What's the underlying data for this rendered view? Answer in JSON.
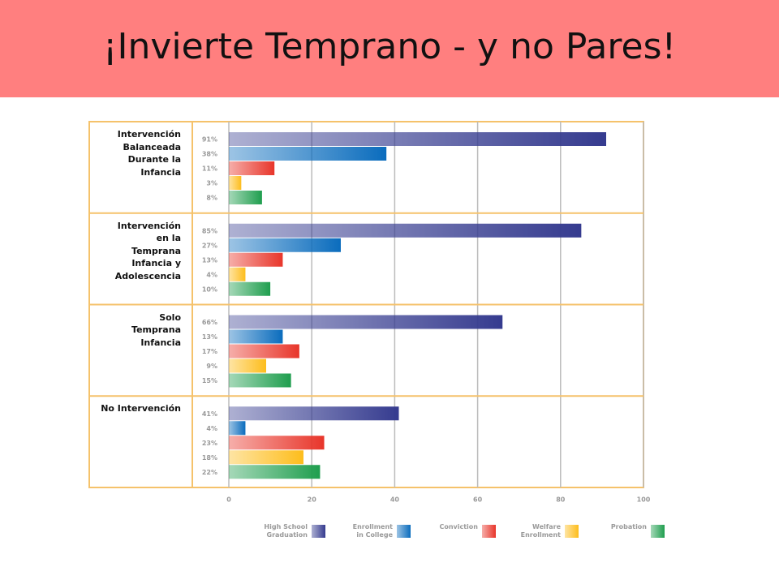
{
  "title": "¡Invierte Temprano - y no Pares!",
  "chart_data": {
    "type": "bar",
    "orientation": "horizontal",
    "categories": [
      "Intervención\nBalanceada\nDurante la\nInfancia",
      "Intervención\nen la\nTemprana\nInfancia y\nAdolescencia",
      "Solo\nTemprana\nInfancia",
      "No Intervención"
    ],
    "series": [
      {
        "name": "High School\nGraduation",
        "color": "#353b8f",
        "values": [
          91,
          85,
          66,
          41
        ],
        "value_labels": [
          "91%",
          "85%",
          "66%",
          "41%"
        ]
      },
      {
        "name": "Enrollment\nin College",
        "color": "#0a6cbd",
        "values": [
          38,
          27,
          13,
          4
        ],
        "value_labels": [
          "38%",
          "27%",
          "13%",
          "4%"
        ]
      },
      {
        "name": "Conviction",
        "color": "#e8352a",
        "values": [
          11,
          13,
          17,
          23
        ],
        "value_labels": [
          "11%",
          "13%",
          "17%",
          "23%"
        ]
      },
      {
        "name": "Welfare\nEnrollment",
        "color": "#fdbd1c",
        "values": [
          3,
          4,
          9,
          18
        ],
        "value_labels": [
          "3%",
          "4%",
          "9%",
          "18%"
        ]
      },
      {
        "name": "Probation",
        "color": "#1f9e4e",
        "values": [
          8,
          10,
          15,
          22
        ],
        "value_labels": [
          "8%",
          "10%",
          "15%",
          "22%"
        ]
      }
    ],
    "xlim": [
      0,
      100
    ],
    "xticks": [
      0,
      20,
      40,
      60,
      80,
      100
    ],
    "grid": true
  }
}
